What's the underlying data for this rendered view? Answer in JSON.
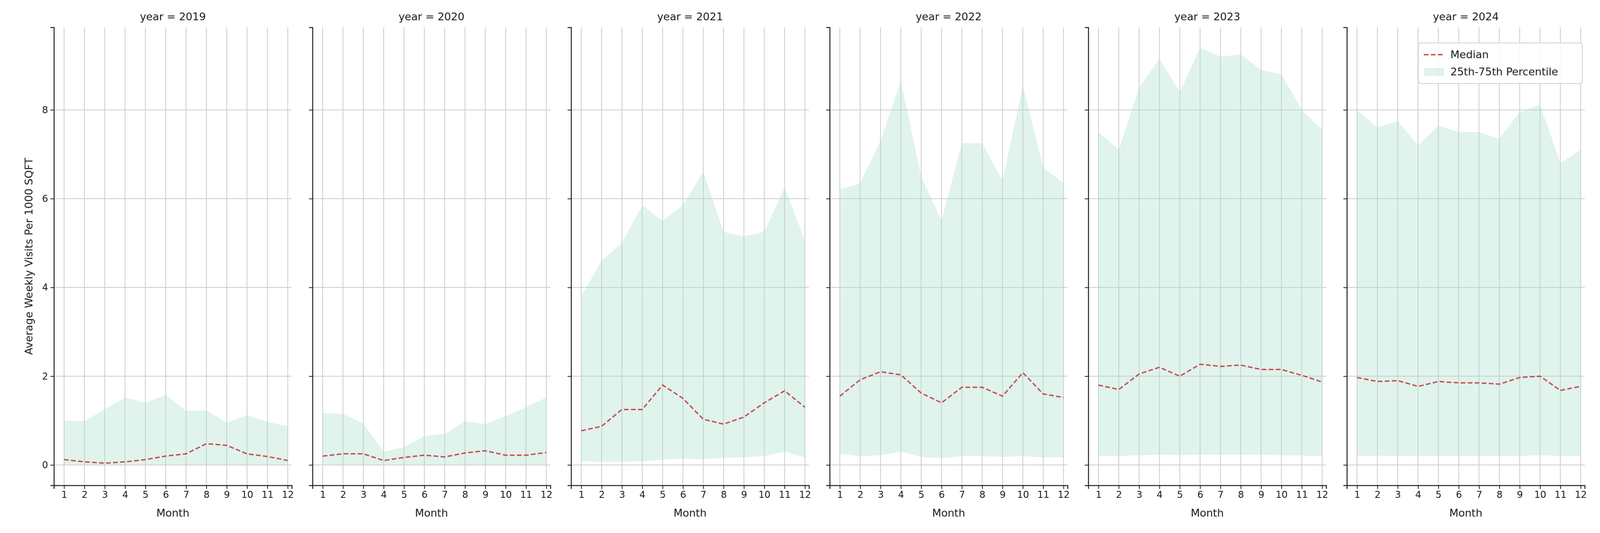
{
  "chart_data": [
    {
      "type": "line",
      "title": "year = 2019",
      "x_label": "Month",
      "y_label": "Average Weekly Visits Per 1000 SQFT",
      "x": [
        1,
        2,
        3,
        4,
        5,
        6,
        7,
        8,
        9,
        10,
        11,
        12
      ],
      "xlim": [
        0.5,
        12.2
      ],
      "xticks": [
        1,
        2,
        3,
        4,
        5,
        6,
        7,
        8,
        9,
        10,
        11,
        12
      ],
      "ylim": [
        -0.46,
        9.86
      ],
      "yticks": [
        0,
        2,
        4,
        6,
        8
      ],
      "grid": true,
      "series": [
        {
          "name": "Median",
          "color": "#c44e52",
          "line_style": "dashed",
          "values": [
            0.12,
            0.07,
            0.04,
            0.07,
            0.12,
            0.2,
            0.25,
            0.48,
            0.44,
            0.25,
            0.19,
            0.1
          ]
        },
        {
          "name": "25th-75th Percentile",
          "type": "area",
          "color": "#a6dcc9",
          "lower": [
            0.01,
            0.01,
            0.01,
            0.01,
            0.01,
            0.01,
            0.01,
            0.01,
            0.01,
            0.01,
            0.01,
            0.01
          ],
          "upper": [
            1.0,
            0.98,
            1.25,
            1.52,
            1.4,
            1.58,
            1.22,
            1.23,
            0.95,
            1.12,
            0.97,
            0.87
          ]
        }
      ]
    },
    {
      "type": "line",
      "title": "year = 2020",
      "x_label": "Month",
      "x": [
        1,
        2,
        3,
        4,
        5,
        6,
        7,
        8,
        9,
        10,
        11,
        12
      ],
      "xlim": [
        0.5,
        12.2
      ],
      "xticks": [
        1,
        2,
        3,
        4,
        5,
        6,
        7,
        8,
        9,
        10,
        11,
        12
      ],
      "ylim": [
        -0.46,
        9.86
      ],
      "yticks": [
        0,
        2,
        4,
        6,
        8
      ],
      "grid": true,
      "tick_labels": "x",
      "series": [
        {
          "name": "Median",
          "color": "#c44e52",
          "line_style": "dashed",
          "values": [
            0.2,
            0.25,
            0.25,
            0.1,
            0.17,
            0.22,
            0.18,
            0.27,
            0.32,
            0.22,
            0.22,
            0.28
          ]
        },
        {
          "name": "25th-75th Percentile",
          "type": "area",
          "color": "#a6dcc9",
          "lower": [
            0.01,
            0.01,
            0.01,
            0.01,
            0.01,
            0.01,
            0.01,
            0.01,
            0.01,
            0.01,
            0.01,
            0.01
          ],
          "upper": [
            1.17,
            1.15,
            0.93,
            0.3,
            0.4,
            0.65,
            0.7,
            0.98,
            0.92,
            1.1,
            1.3,
            1.52
          ]
        }
      ]
    },
    {
      "type": "line",
      "title": "year = 2021",
      "x_label": "Month",
      "x": [
        1,
        2,
        3,
        4,
        5,
        6,
        7,
        8,
        9,
        10,
        11,
        12
      ],
      "xlim": [
        0.5,
        12.2
      ],
      "xticks": [
        1,
        2,
        3,
        4,
        5,
        6,
        7,
        8,
        9,
        10,
        11,
        12
      ],
      "ylim": [
        -0.46,
        9.86
      ],
      "yticks": [
        0,
        2,
        4,
        6,
        8
      ],
      "grid": true,
      "tick_labels": "x",
      "series": [
        {
          "name": "Median",
          "color": "#c44e52",
          "line_style": "dashed",
          "values": [
            0.77,
            0.87,
            1.25,
            1.25,
            1.8,
            1.5,
            1.03,
            0.92,
            1.08,
            1.4,
            1.67,
            1.3
          ]
        },
        {
          "name": "25th-75th Percentile",
          "type": "area",
          "color": "#a6dcc9",
          "lower": [
            0.08,
            0.07,
            0.07,
            0.08,
            0.12,
            0.14,
            0.13,
            0.16,
            0.17,
            0.2,
            0.3,
            0.17
          ],
          "upper": [
            3.8,
            4.6,
            5.0,
            5.85,
            5.5,
            5.85,
            6.6,
            5.25,
            5.15,
            5.25,
            6.25,
            5.05
          ]
        }
      ]
    },
    {
      "type": "line",
      "title": "year = 2022",
      "x_label": "Month",
      "x": [
        1,
        2,
        3,
        4,
        5,
        6,
        7,
        8,
        9,
        10,
        11,
        12
      ],
      "xlim": [
        0.5,
        12.2
      ],
      "xticks": [
        1,
        2,
        3,
        4,
        5,
        6,
        7,
        8,
        9,
        10,
        11,
        12
      ],
      "ylim": [
        -0.46,
        9.86
      ],
      "yticks": [
        0,
        2,
        4,
        6,
        8
      ],
      "grid": true,
      "tick_labels": "x",
      "series": [
        {
          "name": "Median",
          "color": "#c44e52",
          "line_style": "dashed",
          "values": [
            1.55,
            1.92,
            2.1,
            2.03,
            1.62,
            1.4,
            1.75,
            1.75,
            1.55,
            2.08,
            1.6,
            1.52
          ]
        },
        {
          "name": "25th-75th Percentile",
          "type": "area",
          "color": "#a6dcc9",
          "lower": [
            0.25,
            0.2,
            0.22,
            0.3,
            0.18,
            0.15,
            0.2,
            0.2,
            0.18,
            0.2,
            0.17,
            0.17
          ],
          "upper": [
            6.2,
            6.35,
            7.3,
            8.65,
            6.5,
            5.5,
            7.25,
            7.25,
            6.4,
            8.55,
            6.7,
            6.35
          ]
        }
      ]
    },
    {
      "type": "line",
      "title": "year = 2023",
      "x_label": "Month",
      "x": [
        1,
        2,
        3,
        4,
        5,
        6,
        7,
        8,
        9,
        10,
        11,
        12
      ],
      "xlim": [
        0.5,
        12.2
      ],
      "xticks": [
        1,
        2,
        3,
        4,
        5,
        6,
        7,
        8,
        9,
        10,
        11,
        12
      ],
      "ylim": [
        -0.46,
        9.86
      ],
      "yticks": [
        0,
        2,
        4,
        6,
        8
      ],
      "grid": true,
      "tick_labels": "x",
      "series": [
        {
          "name": "Median",
          "color": "#c44e52",
          "line_style": "dashed",
          "values": [
            1.8,
            1.7,
            2.05,
            2.2,
            2.0,
            2.27,
            2.22,
            2.25,
            2.15,
            2.15,
            2.02,
            1.87
          ]
        },
        {
          "name": "25th-75th Percentile",
          "type": "area",
          "color": "#a6dcc9",
          "lower": [
            0.2,
            0.2,
            0.22,
            0.23,
            0.22,
            0.23,
            0.23,
            0.23,
            0.23,
            0.22,
            0.21,
            0.2
          ],
          "upper": [
            7.5,
            7.1,
            8.5,
            9.15,
            8.4,
            9.4,
            9.2,
            9.25,
            8.9,
            8.8,
            8.0,
            7.55
          ]
        }
      ]
    },
    {
      "type": "line",
      "title": "year = 2024",
      "x_label": "Month",
      "x": [
        1,
        2,
        3,
        4,
        5,
        6,
        7,
        8,
        9,
        10,
        11,
        12
      ],
      "xlim": [
        0.5,
        12.2
      ],
      "xticks": [
        1,
        2,
        3,
        4,
        5,
        6,
        7,
        8,
        9,
        10,
        11,
        12
      ],
      "ylim": [
        -0.46,
        9.86
      ],
      "yticks": [
        0,
        2,
        4,
        6,
        8
      ],
      "grid": true,
      "tick_labels": "x",
      "legend": "upper right",
      "series": [
        {
          "name": "Median",
          "color": "#c44e52",
          "line_style": "dashed",
          "values": [
            1.97,
            1.88,
            1.9,
            1.77,
            1.88,
            1.85,
            1.85,
            1.82,
            1.97,
            2.0,
            1.68,
            1.77
          ]
        },
        {
          "name": "25th-75th Percentile",
          "type": "area",
          "color": "#a6dcc9",
          "lower": [
            0.2,
            0.21,
            0.2,
            0.2,
            0.2,
            0.2,
            0.2,
            0.2,
            0.2,
            0.22,
            0.2,
            0.2
          ],
          "upper": [
            8.0,
            7.6,
            7.75,
            7.2,
            7.65,
            7.5,
            7.5,
            7.35,
            7.95,
            8.12,
            6.8,
            7.1
          ]
        }
      ]
    }
  ]
}
